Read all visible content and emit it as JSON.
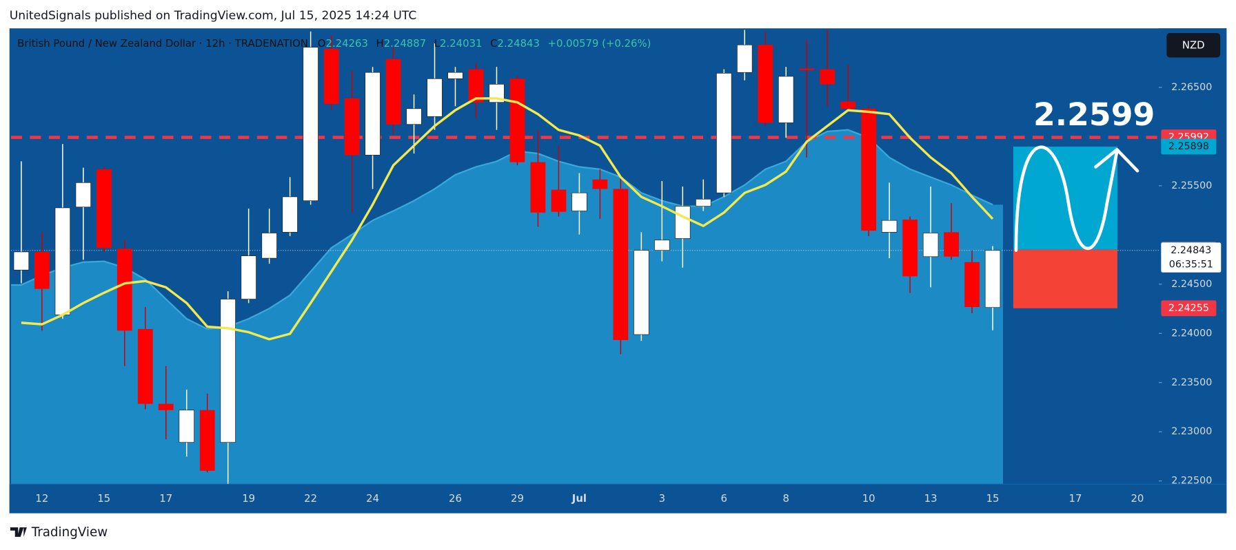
{
  "header": {
    "title": "UnitedSignals published on TradingView.com, Jul 15, 2025 14:24 UTC"
  },
  "footer": {
    "brand": "TradingView"
  },
  "chart_data": {
    "type": "candlestick",
    "symbol": "British Pound / New Zealand Dollar · 12h · TRADENATION",
    "ohlc_letters": [
      "O",
      "H",
      "L",
      "C"
    ],
    "change_label": "+0.00579 (+0.26%)",
    "currency": "NZD",
    "annotation": "2.2599",
    "countdown": "06:35:51",
    "up_color": "#ffffff",
    "down_color": "#ff0000",
    "categories": [
      null,
      "12",
      null,
      null,
      "15",
      null,
      null,
      "17",
      null,
      null,
      null,
      "19",
      null,
      null,
      "22",
      null,
      null,
      "24",
      null,
      null,
      null,
      "26",
      null,
      null,
      "29",
      null,
      null,
      "Jul",
      null,
      null,
      null,
      "3",
      null,
      null,
      "6",
      null,
      null,
      "8",
      null,
      null,
      null,
      "10",
      null,
      null,
      "13",
      null,
      null,
      "15",
      null,
      null,
      null,
      "17",
      null,
      null,
      "20",
      null
    ],
    "open": [
      2.24644,
      2.24828,
      2.24188,
      2.25284,
      2.25668,
      2.2486,
      2.24044,
      2.23284,
      2.22892,
      2.2322,
      2.22892,
      2.24348,
      2.24764,
      2.25028,
      2.25348,
      2.26892,
      2.26388,
      2.25812,
      2.26788,
      2.26124,
      2.26204,
      2.26588,
      2.26684,
      2.26348,
      2.26588,
      2.2574,
      2.2546,
      2.25244,
      2.25564,
      2.25468,
      2.23988,
      2.24844,
      2.24964,
      2.25292,
      2.25428,
      2.26652,
      2.26932,
      2.2614,
      2.26692,
      2.26684,
      2.26356,
      2.26284,
      2.25028,
      2.25156,
      2.2478,
      2.25028,
      2.24724,
      2.24263,
      null,
      null,
      null,
      null,
      null,
      null,
      null,
      null
    ],
    "high": [
      2.25748,
      2.25028,
      2.25924,
      2.25684,
      2.25692,
      2.24948,
      2.24268,
      2.23668,
      2.23428,
      2.23388,
      2.24428,
      2.25268,
      2.25268,
      2.25588,
      2.27068,
      2.27028,
      2.26668,
      2.26708,
      2.26908,
      2.26428,
      2.26948,
      2.26708,
      2.26748,
      2.26708,
      2.2662,
      2.26068,
      2.25908,
      2.25628,
      2.25668,
      2.25588,
      2.25028,
      2.25548,
      2.25492,
      2.25564,
      2.26684,
      2.27084,
      2.27068,
      2.26708,
      2.26988,
      2.27084,
      2.26732,
      2.26308,
      2.25532,
      2.25188,
      2.25492,
      2.25324,
      2.24844,
      2.24887,
      null,
      null,
      null,
      null,
      null,
      null,
      null,
      null
    ],
    "low": [
      2.24508,
      2.24028,
      2.24148,
      2.24748,
      2.24828,
      2.23668,
      2.23228,
      2.22924,
      2.22748,
      2.22588,
      2.22468,
      2.24308,
      2.24708,
      2.24988,
      2.25308,
      2.26268,
      2.25228,
      2.25468,
      2.26028,
      2.25828,
      2.26068,
      2.26308,
      2.26188,
      2.26068,
      2.25708,
      2.25084,
      2.25188,
      2.25004,
      2.25164,
      2.23788,
      2.23924,
      2.24732,
      2.24668,
      2.25244,
      2.25388,
      2.26572,
      2.26108,
      2.25988,
      2.25788,
      2.26308,
      2.26268,
      2.24988,
      2.24764,
      2.24412,
      2.24468,
      2.24748,
      2.24204,
      2.24031,
      null,
      null,
      null,
      null,
      null,
      null,
      null,
      null
    ],
    "close": [
      2.24828,
      2.24452,
      2.25276,
      2.25532,
      2.24868,
      2.24028,
      2.23284,
      2.2322,
      2.2322,
      2.22604,
      2.24348,
      2.24788,
      2.2502,
      2.25388,
      2.26908,
      2.26332,
      2.25812,
      2.26652,
      2.26124,
      2.26284,
      2.26588,
      2.26652,
      2.26348,
      2.26532,
      2.2574,
      2.25228,
      2.25236,
      2.25428,
      2.25468,
      2.23932,
      2.24844,
      2.24948,
      2.25292,
      2.25364,
      2.26644,
      2.26932,
      2.2614,
      2.26612,
      2.26676,
      2.26532,
      2.26284,
      2.25044,
      2.25148,
      2.2458,
      2.2502,
      2.2478,
      2.24268,
      2.24843,
      null,
      null,
      null,
      null,
      null,
      null,
      null,
      null
    ],
    "ma_fast": {
      "color": "#f2e94e",
      "values": [
        2.24108,
        2.24092,
        2.24188,
        2.24308,
        2.24412,
        2.24508,
        2.24532,
        2.24468,
        2.24308,
        2.24068,
        2.24052,
        2.24012,
        2.2394,
        2.23996,
        2.24308,
        2.24628,
        2.24948,
        2.25308,
        2.25708,
        2.25908,
        2.26108,
        2.26268,
        2.26388,
        2.26388,
        2.26348,
        2.26228,
        2.26068,
        2.26012,
        2.25908,
        2.25588,
        2.25388,
        2.25292,
        2.25188,
        2.25092,
        2.25228,
        2.25428,
        2.25508,
        2.25644,
        2.25948,
        2.26108,
        2.26268,
        2.26252,
        2.26228,
        2.25988,
        2.25788,
        2.25628,
        2.25388,
        2.25164,
        null,
        null,
        null,
        null,
        null,
        null,
        null,
        null
      ]
    },
    "ma_slow": {
      "color": "#1e8dc6",
      "values": [
        2.24492,
        2.24588,
        2.24668,
        2.24724,
        2.24732,
        2.24668,
        2.24548,
        2.24348,
        2.24148,
        2.24044,
        2.24068,
        2.24148,
        2.24252,
        2.24388,
        2.24628,
        2.24868,
        2.25004,
        2.25148,
        2.25244,
        2.25348,
        2.25468,
        2.25612,
        2.25692,
        2.25748,
        2.25852,
        2.25828,
        2.25748,
        2.25692,
        2.25668,
        2.25588,
        2.25428,
        2.25348,
        2.25292,
        2.25292,
        2.25388,
        2.25508,
        2.25668,
        2.25748,
        2.25948,
        2.26052,
        2.26068,
        2.25988,
        2.25788,
        2.25668,
        2.25588,
        2.25508,
        2.25404,
        2.25308,
        null,
        null,
        null,
        null,
        null,
        null,
        null,
        null
      ]
    },
    "levels": {
      "line": 2.25992,
      "target": 2.25898,
      "entry": 2.24851,
      "stop": 2.24255
    },
    "ylim": [
      2.22468,
      2.27092
    ],
    "yticks": [
      {
        "value": 2.225,
        "label": "2.22500"
      },
      {
        "value": 2.23,
        "label": "2.23000"
      },
      {
        "value": 2.235,
        "label": "2.23500"
      },
      {
        "value": 2.24,
        "label": "2.24000"
      },
      {
        "value": 2.245,
        "label": "2.24500"
      },
      {
        "value": 2.255,
        "label": "2.25500"
      },
      {
        "value": 2.265,
        "label": "2.26500"
      }
    ]
  }
}
